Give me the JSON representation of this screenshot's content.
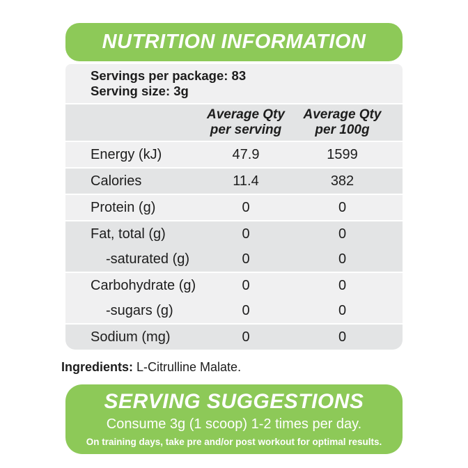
{
  "header": {
    "title": "NUTRITION INFORMATION"
  },
  "serving_info": {
    "servings_per_package": "Servings per package: 83",
    "serving_size": "Serving size: 3g"
  },
  "table": {
    "columns": [
      {
        "line1": "Average Qty",
        "line2": "per serving"
      },
      {
        "line1": "Average Qty",
        "line2": "per 100g"
      }
    ],
    "rows": [
      {
        "label": "Energy (kJ)",
        "per_serving": "47.9",
        "per_100g": "1599"
      },
      {
        "label": "Calories",
        "per_serving": "11.4",
        "per_100g": "382"
      },
      {
        "label": "Protein (g)",
        "per_serving": "0",
        "per_100g": "0"
      },
      {
        "label": "Fat, total (g)",
        "per_serving": "0",
        "per_100g": "0"
      },
      {
        "label": "-saturated (g)",
        "per_serving": "0",
        "per_100g": "0"
      },
      {
        "label": "Carbohydrate (g)",
        "per_serving": "0",
        "per_100g": "0"
      },
      {
        "label": "-sugars (g)",
        "per_serving": "0",
        "per_100g": "0"
      },
      {
        "label": "Sodium (mg)",
        "per_serving": "0",
        "per_100g": "0"
      }
    ]
  },
  "ingredients": {
    "label": "Ingredients:",
    "value": " L-Citrulline Malate."
  },
  "footer": {
    "title": "SERVING SUGGESTIONS",
    "line1": "Consume 3g (1 scoop) 1-2 times per day.",
    "line2": "On training days, take pre and/or post workout for optimal results."
  },
  "colors": {
    "accent_green": "#8dc958",
    "band_light": "#f0f0f1",
    "band_dark": "#e3e4e5",
    "text_dark": "#1d1d1d",
    "text_white": "#ffffff"
  }
}
